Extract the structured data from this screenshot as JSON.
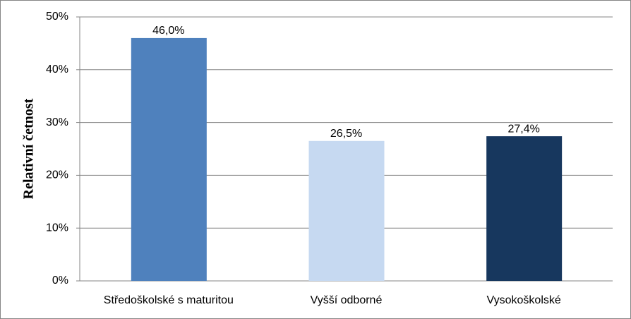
{
  "chart_data": {
    "type": "bar",
    "y_label": "Relativní četnost",
    "categories": [
      "Středoškolské s maturitou",
      "Vyšší odborné",
      "Vysokoškolské"
    ],
    "values": [
      46.0,
      26.5,
      27.4
    ],
    "value_labels": [
      "46,0%",
      "26,5%",
      "27,4%"
    ],
    "colors": [
      "#4f81bd",
      "#c6d9f1",
      "#17375e"
    ],
    "ylim": [
      0,
      50
    ],
    "yticks": [
      {
        "value": 0,
        "label": "0%"
      },
      {
        "value": 10,
        "label": "10%"
      },
      {
        "value": 20,
        "label": "20%"
      },
      {
        "value": 30,
        "label": "30%"
      },
      {
        "value": 40,
        "label": "40%"
      },
      {
        "value": 50,
        "label": "50%"
      }
    ],
    "grid": true
  }
}
